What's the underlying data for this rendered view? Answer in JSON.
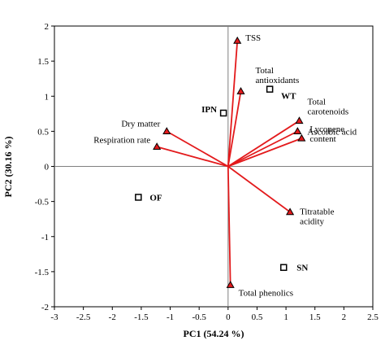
{
  "chart_data": {
    "type": "scatter",
    "title": "",
    "xlabel": "PC1 (54.24 %)",
    "ylabel": "PC2 (30.16 %)",
    "xlim": [
      -3,
      2.5
    ],
    "ylim": [
      -2,
      2
    ],
    "x_ticks": [
      "-3",
      "-2.5",
      "-2",
      "-1.5",
      "-1",
      "-0.5",
      "0",
      "0.5",
      "1",
      "1.5",
      "2",
      "2.5"
    ],
    "y_ticks": [
      "2",
      "1.5",
      "1",
      "0.5",
      "0",
      "-0.5",
      "-1",
      "-1.5",
      "-2"
    ],
    "grid": false,
    "colors": {
      "vector": "#e31a1c",
      "axis": "#808080",
      "marker": "#000000"
    },
    "variables": [
      {
        "label": [
          "TSS"
        ],
        "x": 0.16,
        "y": 1.79
      },
      {
        "label": [
          "Total",
          "antioxidants"
        ],
        "x": 0.22,
        "y": 1.07
      },
      {
        "label": [
          "Total",
          "carotenoids"
        ],
        "x": 1.23,
        "y": 0.65
      },
      {
        "label": [
          "Ascorbic acid"
        ],
        "x": 1.2,
        "y": 0.5
      },
      {
        "label": [
          "Lycopene",
          "content"
        ],
        "x": 1.27,
        "y": 0.4
      },
      {
        "label": [
          "Dry matter"
        ],
        "x": -1.06,
        "y": 0.5
      },
      {
        "label": [
          "Respiration rate"
        ],
        "x": -1.23,
        "y": 0.28
      },
      {
        "label": [
          "Titratable",
          "acidity"
        ],
        "x": 1.07,
        "y": -0.65
      },
      {
        "label": [
          "Total phenolics"
        ],
        "x": 0.04,
        "y": -1.69
      }
    ],
    "observations": [
      {
        "label": "WT",
        "x": 0.72,
        "y": 1.1
      },
      {
        "label": "IPN",
        "x": -0.08,
        "y": 0.76
      },
      {
        "label": "OF",
        "x": -1.55,
        "y": -0.44
      },
      {
        "label": "SN",
        "x": 0.96,
        "y": -1.44
      }
    ]
  }
}
